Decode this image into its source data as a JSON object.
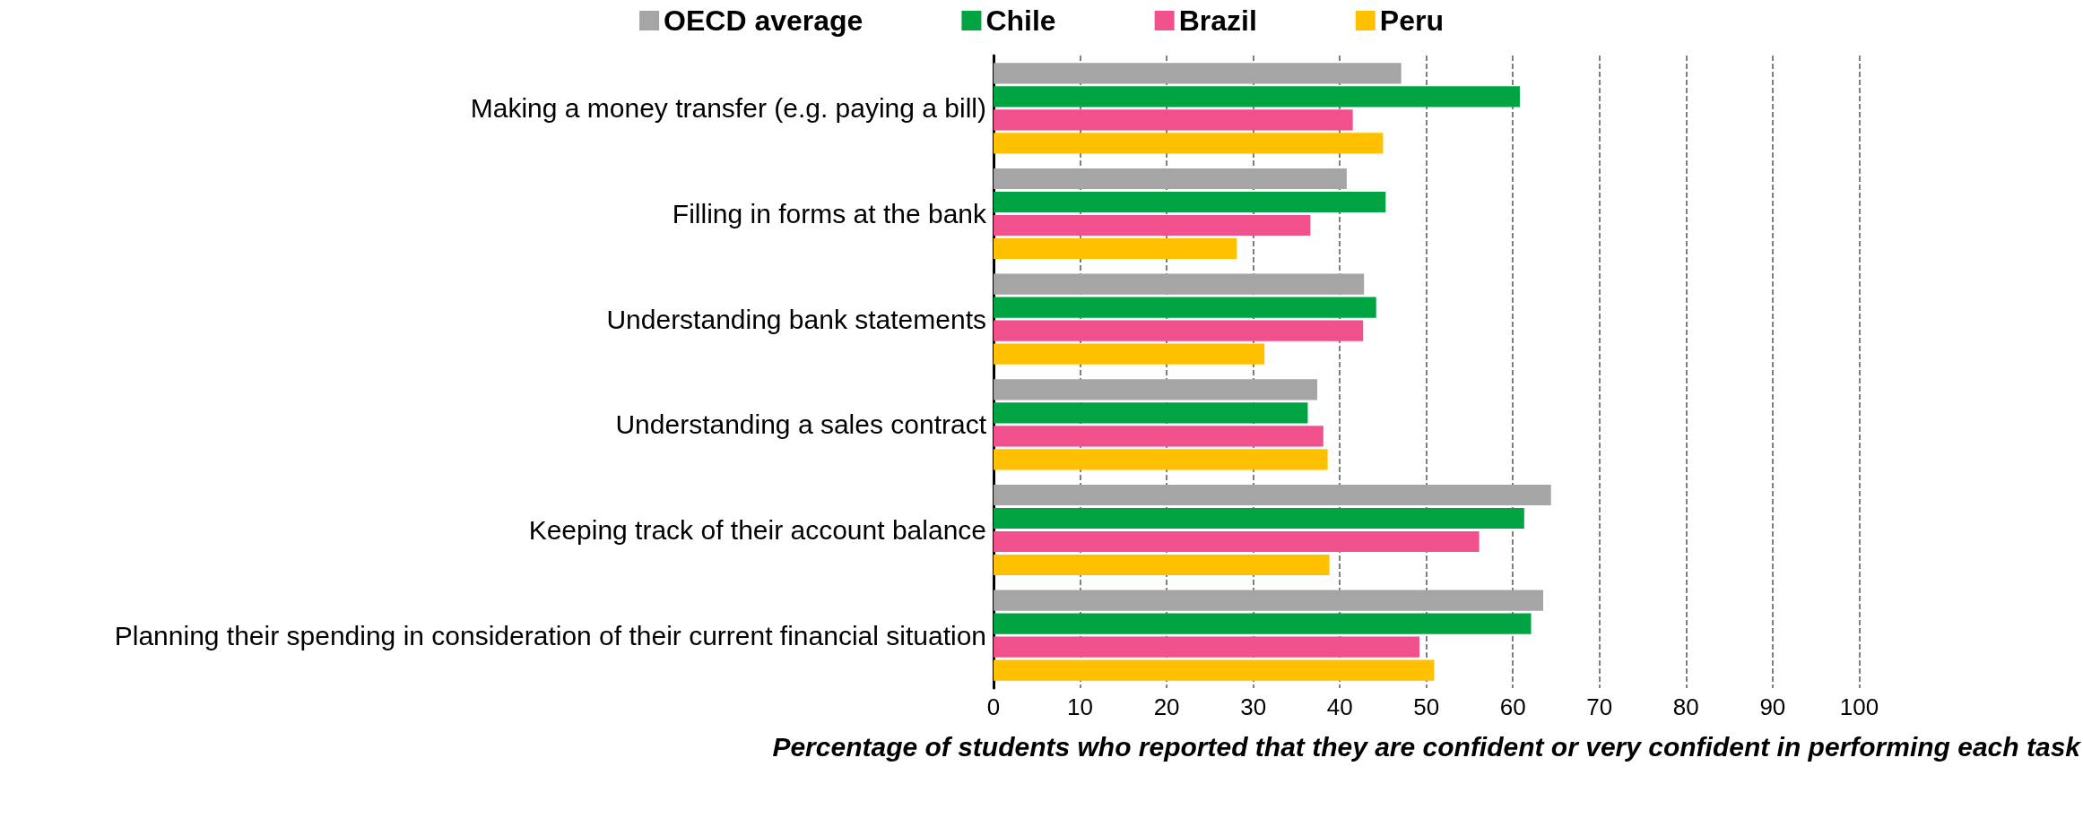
{
  "chart_data": {
    "type": "bar",
    "orientation": "horizontal",
    "categories": [
      "Making a money transfer (e.g. paying a bill)",
      "Filling in forms at the bank",
      "Understanding bank statements",
      "Understanding a sales contract",
      "Keeping track of their account balance",
      "Planning their spending in consideration of their current financial situation"
    ],
    "series": [
      {
        "name": "OECD average",
        "color": "#a5a5a5",
        "values": [
          47.1,
          40.8,
          42.8,
          37.4,
          64.4,
          63.5
        ]
      },
      {
        "name": "Chile",
        "color": "#00a443",
        "values": [
          60.8,
          45.3,
          44.2,
          36.3,
          61.3,
          62.1
        ]
      },
      {
        "name": "Brazil",
        "color": "#f0508c",
        "values": [
          41.5,
          36.6,
          42.7,
          38.1,
          56.1,
          49.2
        ]
      },
      {
        "name": "Peru",
        "color": "#ffc000",
        "values": [
          45.0,
          28.1,
          31.3,
          38.6,
          38.8,
          50.9
        ]
      }
    ],
    "xlim": [
      0,
      100
    ],
    "xticks": [
      0,
      10,
      20,
      30,
      40,
      50,
      60,
      70,
      80,
      90,
      100
    ],
    "xlabel": "Percentage of students who reported that they are confident or very confident in performing each task",
    "grid": "x",
    "legend": "top"
  }
}
